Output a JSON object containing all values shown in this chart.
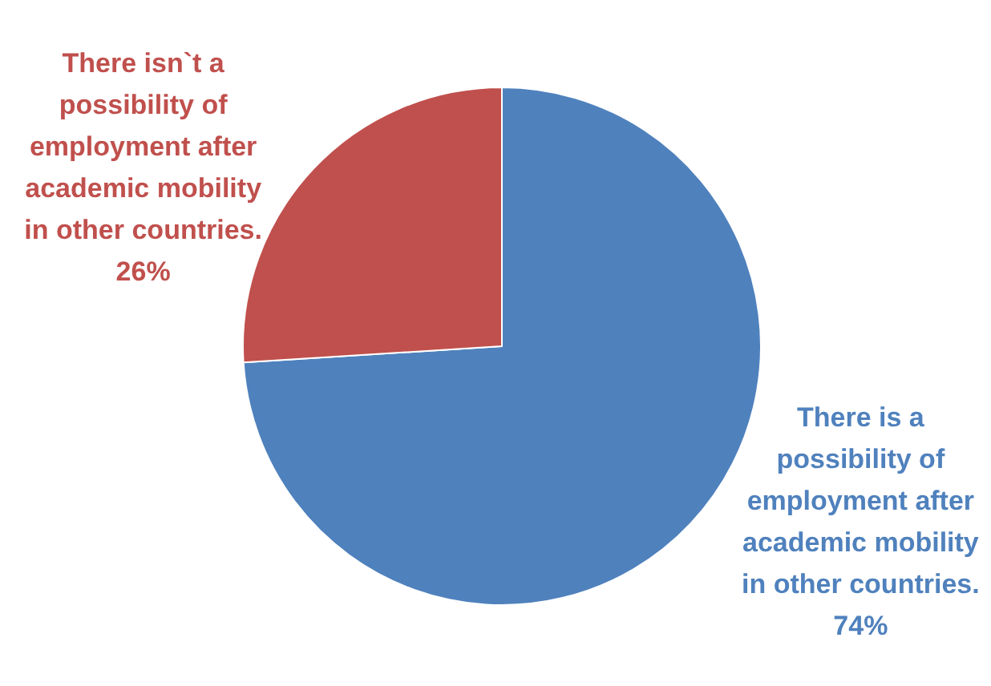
{
  "chart_data": {
    "type": "pie",
    "categories": [
      "There is a possibility of employment after academic mobility in other countries.",
      "There isn`t a possibility of employment after academic mobility in other countries."
    ],
    "values": [
      74,
      26
    ],
    "colors": [
      "#4f81bd",
      "#c0504d"
    ],
    "value_labels": [
      "74%",
      "26%"
    ],
    "legend": false
  }
}
